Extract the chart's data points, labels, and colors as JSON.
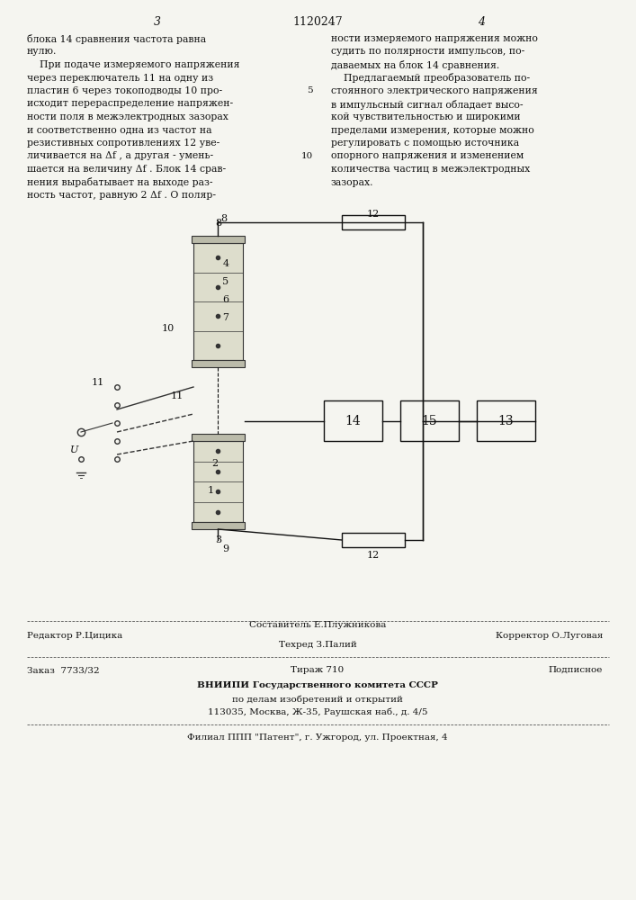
{
  "bg_color": "#f5f5f0",
  "page_number_left": "3",
  "page_number_center": "1120247",
  "page_number_right": "4",
  "col1_text": [
    "блока 14 сравнения частота равна",
    "нулю.",
    "    При подаче измеряемого напряжения",
    "через переключатель 11 на одну из",
    "пластин 6 через токоподводы 10 про-",
    "исходит перераспределение напряжен-",
    "ности поля в межэлектродных зазорах",
    "и соответственно одна из частот на",
    "резистивных сопротивлениях 12 уве-",
    "личивается на Δf , а другая - умень-",
    "шается на величину Δf . Блок 14 срав-",
    "нения вырабатывает на выходе раз-",
    "ность частот, равную 2 Δf . O поляр-"
  ],
  "col2_text": [
    "ности измеряемого напряжения можно",
    "судить по полярности импульсов, по-",
    "даваемых на блок 14 сравнения.",
    "    Предлагаемый преобразователь по-",
    "стоянного электрического напряжения",
    "в импульсный сигнал обладает высо-",
    "кой чувствительностью и широкими",
    "пределами измерения, которые можно",
    "регулировать с помощью источника",
    "опорного напряжения и изменением",
    "количества частиц в межэлектродных",
    "зазорах."
  ],
  "line_number_5": "5",
  "line_number_10": "10",
  "footer_line1_left": "Редактор Р.Цицика",
  "footer_line1_center": "Составитель Е.Плужникова",
  "footer_line1_right": "Корректор О.Луговая",
  "footer_line2_center": "Техред З.Палий",
  "footer_line3_left": "Заказ  7733/32",
  "footer_line3_center": "Тираж 710",
  "footer_line3_right": "Подписное",
  "footer_line4": "ВНИИПИ Государственного комитета СССР",
  "footer_line5": "по делам изобретений и открытий",
  "footer_line6": "113035, Москва, Ж-35, Раушская наб., д. 4/5",
  "footer_line7": "Филиал ППП \"Патент\", г. Ужгород, ул. Проектная, 4"
}
